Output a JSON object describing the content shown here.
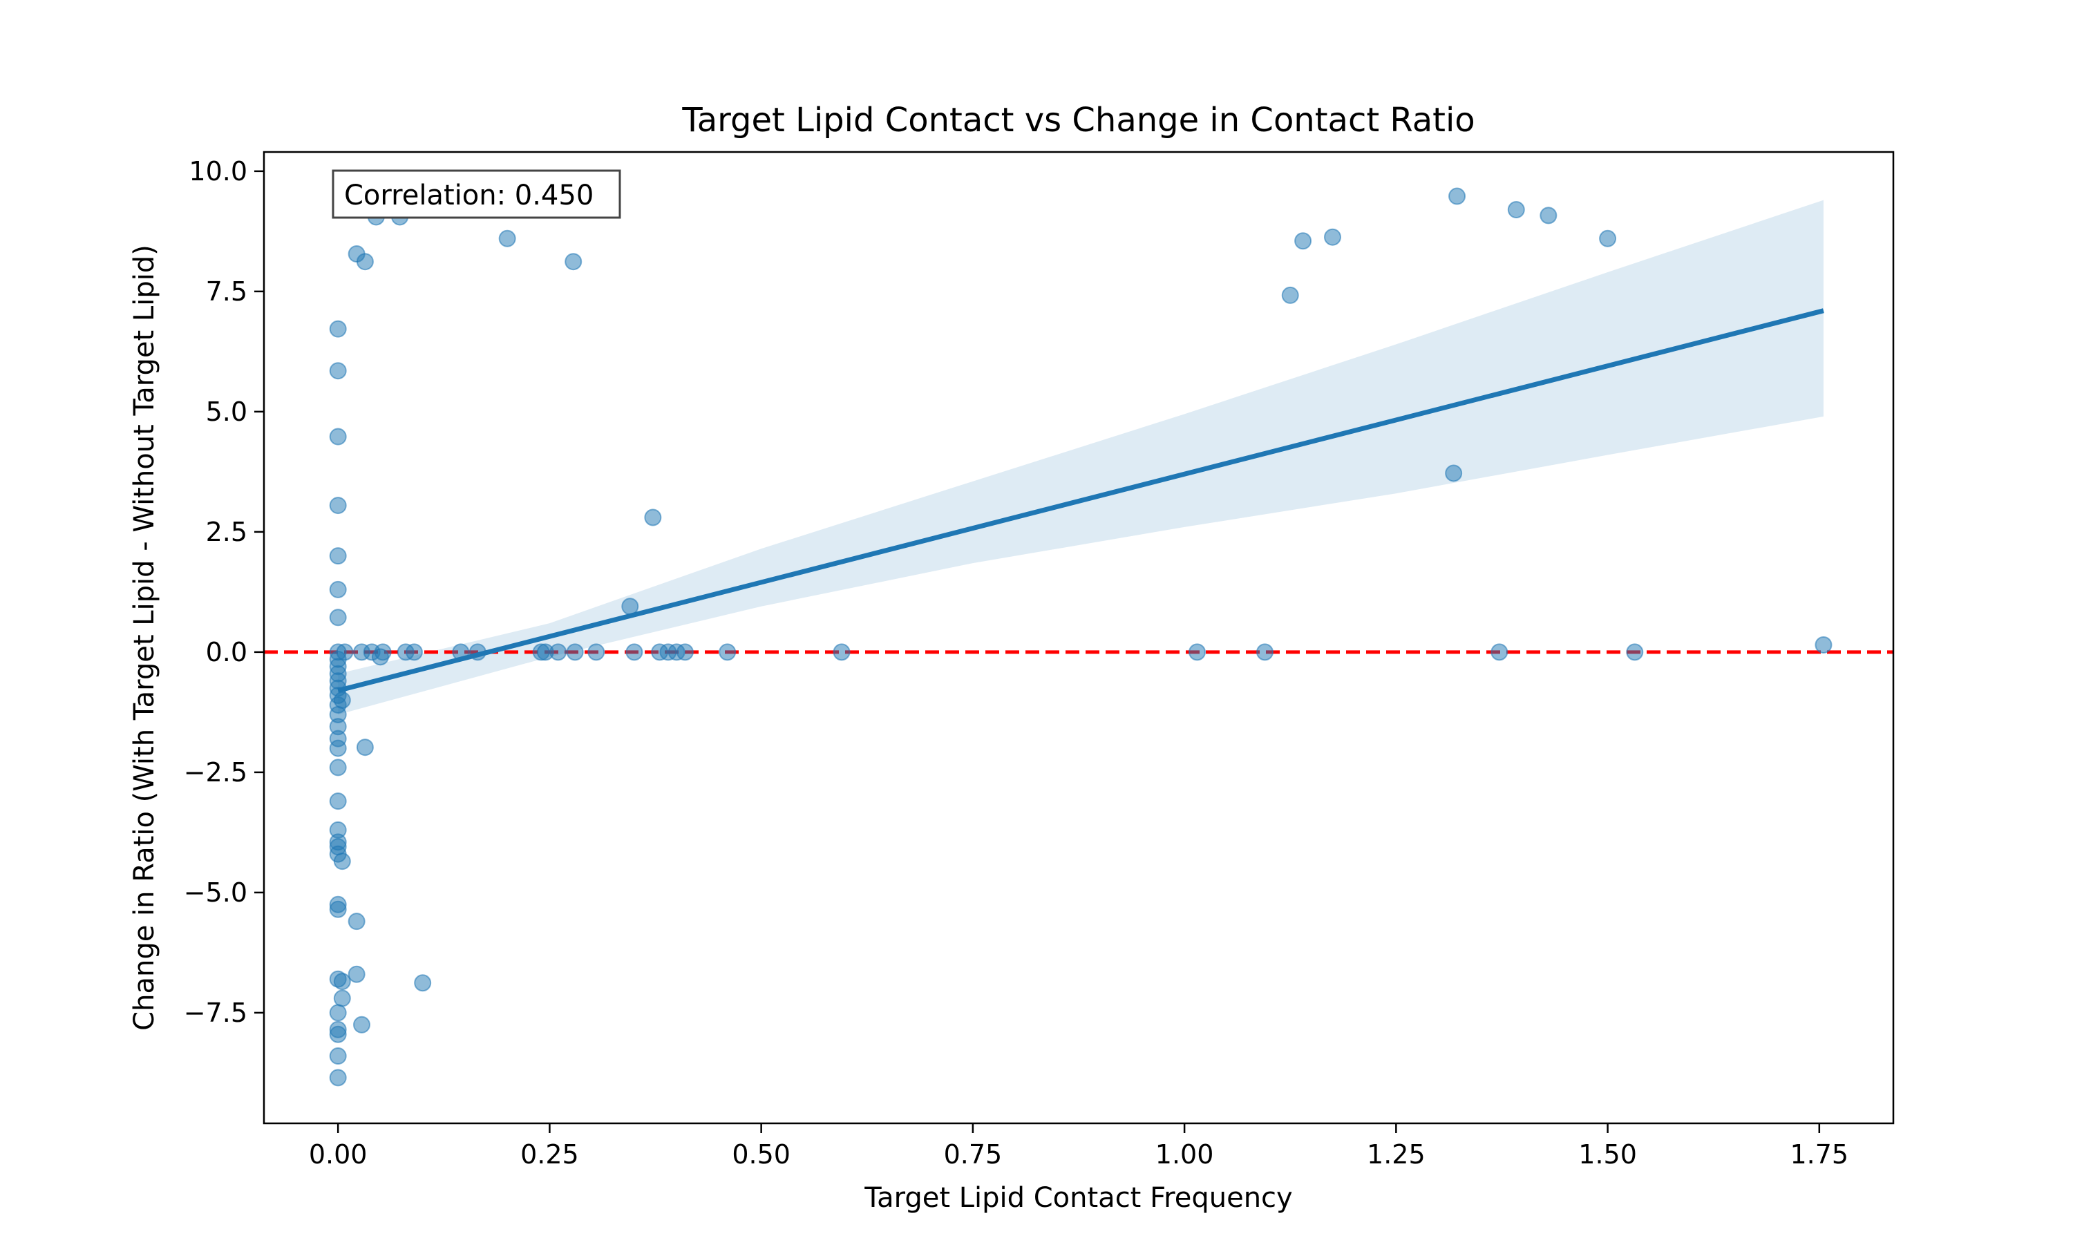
{
  "chart_data": {
    "type": "scatter",
    "title": "Target Lipid Contact vs Change in Contact Ratio",
    "xlabel": "Target Lipid Contact Frequency",
    "ylabel": "Change in Ratio (With Target Lipid - Without Target Lipid)",
    "xlim": [
      -0.0875,
      1.8375
    ],
    "ylim": [
      -9.8,
      10.4
    ],
    "xticks": [
      0.0,
      0.25,
      0.5,
      0.75,
      1.0,
      1.25,
      1.5,
      1.75
    ],
    "xtick_labels": [
      "0.00",
      "0.25",
      "0.50",
      "0.75",
      "1.00",
      "1.25",
      "1.50",
      "1.75"
    ],
    "yticks": [
      -7.5,
      -5.0,
      -2.5,
      0.0,
      2.5,
      5.0,
      7.5,
      10.0
    ],
    "ytick_labels": [
      "−7.5",
      "−5.0",
      "−2.5",
      "0.0",
      "2.5",
      "5.0",
      "7.5",
      "10.0"
    ],
    "grid": false,
    "annotation": "Correlation: 0.450",
    "reference_line": {
      "y": 0.0,
      "style": "dashed",
      "color": "#ff0000"
    },
    "regression": {
      "x": [
        0.0,
        1.755
      ],
      "y": [
        -0.8,
        7.1
      ]
    },
    "confidence_band": {
      "x": [
        0.0,
        0.25,
        0.5,
        0.75,
        1.0,
        1.25,
        1.5,
        1.755
      ],
      "upper": [
        -0.45,
        0.6,
        2.15,
        3.55,
        4.95,
        6.4,
        7.9,
        9.4
      ],
      "lower": [
        -1.3,
        -0.1,
        0.95,
        1.85,
        2.6,
        3.3,
        4.1,
        4.9
      ]
    },
    "series": [
      {
        "points": [
          [
            0.0,
            6.72
          ],
          [
            0.0,
            5.85
          ],
          [
            0.0,
            4.48
          ],
          [
            0.0,
            3.05
          ],
          [
            0.0,
            2.0
          ],
          [
            0.0,
            1.3
          ],
          [
            0.0,
            0.72
          ],
          [
            0.0,
            0.0
          ],
          [
            0.0,
            -0.15
          ],
          [
            0.0,
            -0.3
          ],
          [
            0.0,
            -0.45
          ],
          [
            0.0,
            -0.6
          ],
          [
            0.0,
            -0.75
          ],
          [
            0.0,
            -0.9
          ],
          [
            0.0,
            -1.1
          ],
          [
            0.0,
            -1.3
          ],
          [
            0.0,
            -1.55
          ],
          [
            0.0,
            -1.8
          ],
          [
            0.0,
            -2.0
          ],
          [
            0.0,
            -2.4
          ],
          [
            0.0,
            -3.1
          ],
          [
            0.0,
            -3.7
          ],
          [
            0.0,
            -3.95
          ],
          [
            0.0,
            -4.05
          ],
          [
            0.0,
            -4.2
          ],
          [
            0.0,
            -5.25
          ],
          [
            0.0,
            -5.35
          ],
          [
            0.0,
            -6.8
          ],
          [
            0.0,
            -7.5
          ],
          [
            0.0,
            -7.85
          ],
          [
            0.0,
            -7.95
          ],
          [
            0.0,
            -8.4
          ],
          [
            0.0,
            -8.85
          ],
          [
            0.005,
            -4.35
          ],
          [
            0.005,
            -6.85
          ],
          [
            0.005,
            -7.2
          ],
          [
            0.005,
            -1.0
          ],
          [
            0.008,
            0.0
          ],
          [
            0.022,
            8.28
          ],
          [
            0.032,
            8.12
          ],
          [
            0.022,
            -5.6
          ],
          [
            0.022,
            -6.7
          ],
          [
            0.028,
            -7.75
          ],
          [
            0.032,
            -1.98
          ],
          [
            0.028,
            0.0
          ],
          [
            0.04,
            0.0
          ],
          [
            0.05,
            -0.1
          ],
          [
            0.045,
            9.05
          ],
          [
            0.073,
            9.05
          ],
          [
            0.053,
            0.0
          ],
          [
            0.08,
            0.0
          ],
          [
            0.09,
            0.0
          ],
          [
            0.1,
            -6.88
          ],
          [
            0.145,
            0.0
          ],
          [
            0.15,
            9.25
          ],
          [
            0.165,
            0.0
          ],
          [
            0.2,
            8.6
          ],
          [
            0.215,
            9.3
          ],
          [
            0.24,
            0.0
          ],
          [
            0.245,
            0.0
          ],
          [
            0.26,
            0.0
          ],
          [
            0.278,
            8.12
          ],
          [
            0.28,
            0.0
          ],
          [
            0.305,
            0.0
          ],
          [
            0.345,
            0.95
          ],
          [
            0.35,
            0.0
          ],
          [
            0.372,
            2.8
          ],
          [
            0.38,
            0.0
          ],
          [
            0.39,
            0.0
          ],
          [
            0.4,
            0.0
          ],
          [
            0.41,
            0.0
          ],
          [
            0.46,
            0.0
          ],
          [
            0.595,
            0.0
          ],
          [
            1.015,
            0.0
          ],
          [
            1.095,
            0.0
          ],
          [
            1.125,
            7.42
          ],
          [
            1.14,
            8.55
          ],
          [
            1.175,
            8.63
          ],
          [
            1.318,
            3.72
          ],
          [
            1.322,
            9.48
          ],
          [
            1.372,
            0.0
          ],
          [
            1.392,
            9.2
          ],
          [
            1.43,
            9.08
          ],
          [
            1.5,
            8.6
          ],
          [
            1.532,
            0.0
          ],
          [
            1.755,
            0.15
          ]
        ]
      }
    ],
    "colors": {
      "points": "#1f77b4",
      "regression": "#1f77b4",
      "band": "#1f77b4",
      "reference_line": "#ff0000",
      "axes": "#000000"
    }
  }
}
